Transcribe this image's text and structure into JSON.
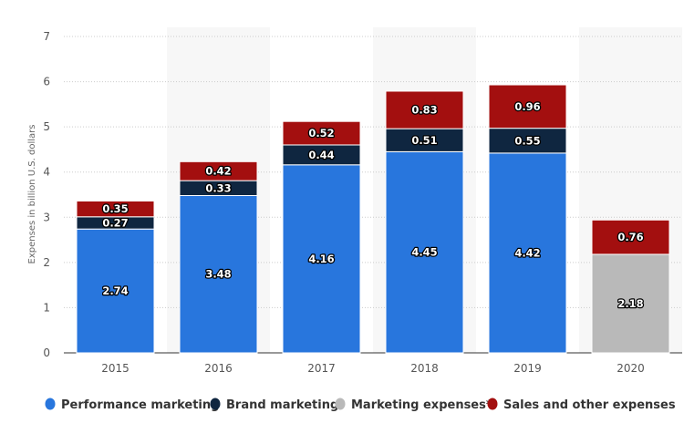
{
  "chart_data": {
    "type": "bar",
    "stacked": true,
    "title": "",
    "xlabel": "",
    "ylabel": "Expenses in billion U.S. dollars",
    "ylim": [
      0,
      7
    ],
    "yticks": [
      "0",
      "1",
      "2",
      "3",
      "4",
      "5",
      "6",
      "7"
    ],
    "grid": true,
    "legend_position": "bottom",
    "categories": [
      "2015",
      "2016",
      "2017",
      "2018",
      "2019",
      "2020"
    ],
    "series": [
      {
        "name": "Performance marketing",
        "color": "#2876dd",
        "values": [
          2.74,
          3.48,
          4.16,
          4.45,
          4.42,
          null
        ]
      },
      {
        "name": "Brand marketing",
        "color": "#0f2640",
        "values": [
          0.27,
          0.33,
          0.44,
          0.51,
          0.55,
          null
        ]
      },
      {
        "name": "Marketing expenses*",
        "color": "#b9b9b9",
        "values": [
          null,
          null,
          null,
          null,
          null,
          2.18
        ]
      },
      {
        "name": "Sales and other expenses",
        "color": "#a30f0f",
        "values": [
          0.35,
          0.42,
          0.52,
          0.83,
          0.96,
          0.76
        ]
      }
    ],
    "value_labels": {
      "Performance marketing": [
        "2.74",
        "3.48",
        "4.16",
        "4.45",
        "4.42",
        ""
      ],
      "Brand marketing": [
        "0.27",
        "0.33",
        "0.44",
        "0.51",
        "0.55",
        ""
      ],
      "Marketing expenses*": [
        "",
        "",
        "",
        "",
        "",
        "2.18"
      ],
      "Sales and other expenses": [
        "0.35",
        "0.42",
        "0.52",
        "0.83",
        "0.96",
        "0.76"
      ]
    }
  }
}
